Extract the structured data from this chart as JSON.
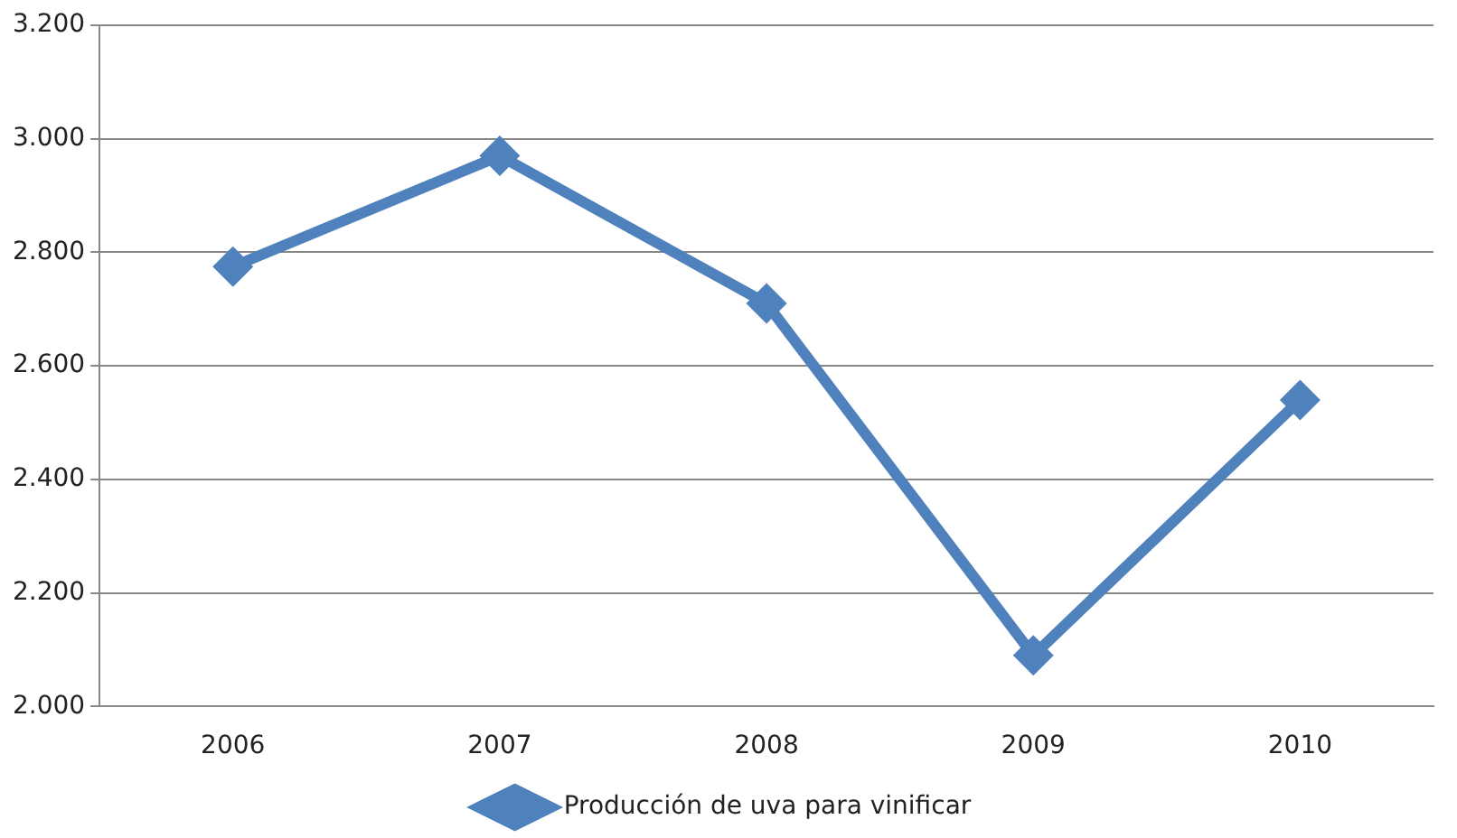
{
  "chart_data": {
    "type": "line",
    "categories": [
      "2006",
      "2007",
      "2008",
      "2009",
      "2010"
    ],
    "series": [
      {
        "name": "Producción de uva para vinificar",
        "color": "#4f81bd",
        "values": [
          2775,
          2970,
          2710,
          2090,
          2540
        ]
      }
    ],
    "ylim": [
      2000,
      3200
    ],
    "yticks": [
      {
        "value": 2000,
        "label": "2.000"
      },
      {
        "value": 2200,
        "label": "2.200"
      },
      {
        "value": 2400,
        "label": "2.400"
      },
      {
        "value": 2600,
        "label": "2.600"
      },
      {
        "value": 2800,
        "label": "2.800"
      },
      {
        "value": 3000,
        "label": "3.000"
      },
      {
        "value": 3200,
        "label": "3.200"
      }
    ],
    "grid": "y",
    "legend": "bottom",
    "marker": "diamond",
    "line_style": "solid"
  }
}
